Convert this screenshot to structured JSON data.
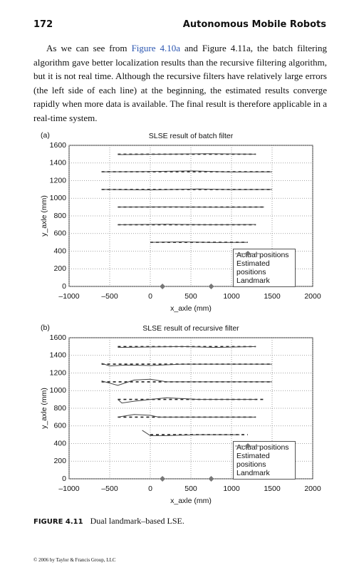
{
  "header": {
    "page_number": "172",
    "running_title": "Autonomous Mobile Robots"
  },
  "body": {
    "text_before": "As we can see from ",
    "link": "Figure 4.10a",
    "text_after": " and Figure 4.11a, the batch filtering algorithm gave better localization results than the recursive filtering algorithm, but it is not real time. Although the recursive filters have relatively large errors (the left side of each line) at the beginning, the estimated results converge rapidly when more data is available. The final result is therefore applicable in a real-time system."
  },
  "chart_data": [
    {
      "type": "line",
      "panel": "(a)",
      "title": "SLSE result of batch filter",
      "x_label": "x_axle (mm)",
      "y_label": "y_axle (mm)",
      "xlim": [
        -1000,
        2000
      ],
      "xticks": [
        {
          "value": -1000,
          "label": "–1000"
        },
        {
          "value": -500,
          "label": "–500"
        },
        0,
        500,
        1000,
        1500,
        2000
      ],
      "ylim": [
        0,
        1600
      ],
      "yticks": [
        0,
        200,
        400,
        600,
        800,
        1000,
        1200,
        1400,
        1600
      ],
      "grid": true,
      "legend": "lower right",
      "series": [
        {
          "name": "Actual positions",
          "color": "#222222",
          "style": "dashed",
          "x": [
            0,
            1200,
            null,
            -400,
            1300,
            null,
            -400,
            1400,
            null,
            -600,
            1500,
            null,
            -600,
            1500,
            null,
            -400,
            1300
          ],
          "y": [
            500,
            500,
            null,
            700,
            700,
            null,
            900,
            900,
            null,
            1100,
            1100,
            null,
            1300,
            1300,
            null,
            1500,
            1500
          ]
        },
        {
          "name": "Estimated positions",
          "color": "#444444",
          "style": "solid",
          "x": [
            0,
            400,
            800,
            1200,
            null,
            -400,
            200,
            700,
            1300,
            null,
            -400,
            300,
            900,
            1400,
            null,
            -600,
            0,
            600,
            1000,
            1500,
            null,
            -600,
            -100,
            500,
            1000,
            1500,
            null,
            -400,
            200,
            700,
            1300
          ],
          "y": [
            500,
            505,
            498,
            500,
            null,
            700,
            705,
            700,
            702,
            null,
            900,
            902,
            898,
            900,
            null,
            1100,
            1095,
            1105,
            1098,
            1100,
            null,
            1300,
            1302,
            1310,
            1298,
            1300,
            null,
            1495,
            1500,
            1505,
            1500
          ]
        },
        {
          "name": "Landmark",
          "color": "#777777",
          "style": "marker",
          "x": [
            150,
            750
          ],
          "y": [
            0,
            0
          ]
        }
      ]
    },
    {
      "type": "line",
      "panel": "(b)",
      "title": "SLSE result of recursive filter",
      "x_label": "x_axle (mm)",
      "y_label": "y_axle (mm)",
      "xlim": [
        -1000,
        2000
      ],
      "xticks": [
        {
          "value": -1000,
          "label": "–1000"
        },
        {
          "value": -500,
          "label": "–500"
        },
        0,
        500,
        1000,
        1500,
        2000
      ],
      "ylim": [
        0,
        1600
      ],
      "yticks": [
        0,
        200,
        400,
        600,
        800,
        1000,
        1200,
        1400,
        1600
      ],
      "grid": true,
      "legend": "lower right",
      "series": [
        {
          "name": "Actual positions",
          "color": "#222222",
          "style": "dashed",
          "x": [
            0,
            1200,
            null,
            -400,
            1300,
            null,
            -400,
            1400,
            null,
            -600,
            1500,
            null,
            -600,
            1500,
            null,
            -400,
            1300
          ],
          "y": [
            500,
            500,
            null,
            700,
            700,
            null,
            900,
            900,
            null,
            1100,
            1100,
            null,
            1300,
            1300,
            null,
            1500,
            1500
          ]
        },
        {
          "name": "Estimated positions",
          "color": "#444444",
          "style": "solid",
          "x": [
            -100,
            0,
            200,
            600,
            1100,
            null,
            -400,
            -200,
            0,
            100,
            500,
            1300,
            null,
            -400,
            -350,
            -200,
            0,
            200,
            600,
            1300,
            null,
            -600,
            -400,
            -200,
            0,
            200,
            600,
            1500,
            null,
            -600,
            -500,
            -300,
            0,
            400,
            800,
            1500,
            null,
            -400,
            0,
            400,
            800,
            1300
          ],
          "y": [
            550,
            490,
            490,
            500,
            500,
            null,
            700,
            730,
            720,
            700,
            700,
            700,
            null,
            900,
            860,
            880,
            900,
            920,
            900,
            900,
            null,
            1110,
            1060,
            1120,
            1130,
            1100,
            1100,
            1100,
            null,
            1310,
            1280,
            1290,
            1285,
            1300,
            1300,
            1300,
            null,
            1490,
            1495,
            1500,
            1490,
            1500
          ]
        },
        {
          "name": "Landmark",
          "color": "#777777",
          "style": "marker",
          "x": [
            150,
            750
          ],
          "y": [
            0,
            0
          ]
        }
      ]
    }
  ],
  "caption": {
    "label": "FIGURE 4.11",
    "text": "Dual landmark–based LSE."
  },
  "footer": "© 2006 by Taylor & Francis Group, LLC"
}
